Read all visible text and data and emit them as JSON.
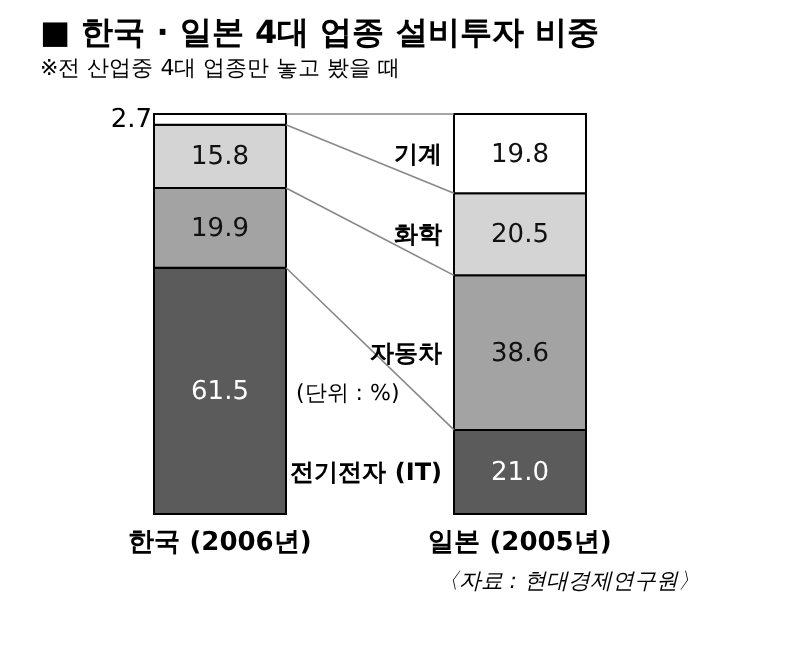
{
  "chart_data": {
    "type": "bar",
    "stacked": true,
    "title": "■ 한국 · 일본 4대 업종 설비투자 비중",
    "subtitle": "※전 산업중 4대 업종만 놓고 봤을 때",
    "categories": [
      "한국 (2006년)",
      "일본 (2005년)"
    ],
    "series": [
      {
        "name": "전기전자 (IT)",
        "color": "#5b5b5b",
        "values": [
          61.5,
          21.0
        ],
        "value_labels": [
          "61.5",
          "21.0"
        ]
      },
      {
        "name": "자동차",
        "color": "#a3a3a3",
        "values": [
          19.9,
          38.6
        ],
        "value_labels": [
          "19.9",
          "38.6"
        ]
      },
      {
        "name": "화학",
        "color": "#d4d4d4",
        "values": [
          15.8,
          20.5
        ],
        "value_labels": [
          "15.8",
          "20.5"
        ]
      },
      {
        "name": "기계",
        "color": "#ffffff",
        "values": [
          2.7,
          19.8
        ],
        "value_labels": [
          "2.7",
          "19.8"
        ]
      }
    ],
    "annotations": [
      "(단위 : %)",
      "〈자료 : 현대경제연구원〉"
    ]
  }
}
